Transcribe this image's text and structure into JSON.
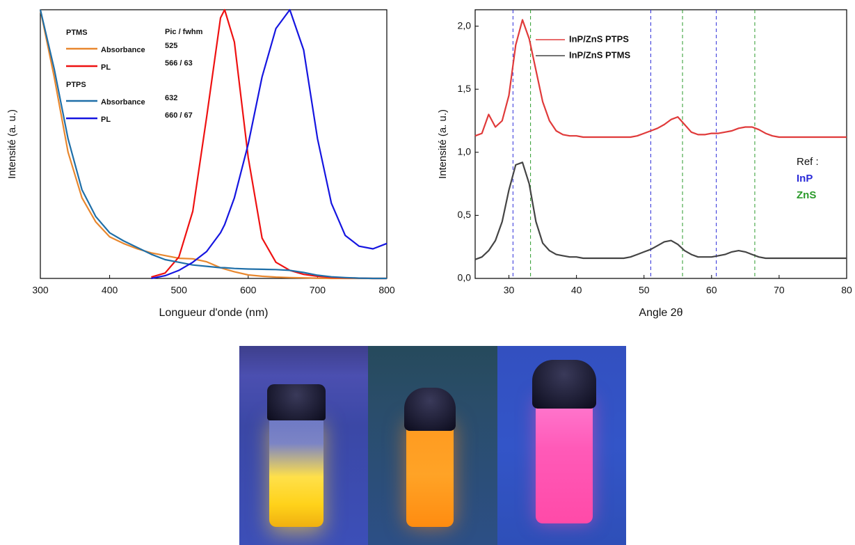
{
  "chart_data": [
    {
      "type": "line",
      "xlabel": "Longueur d'onde (nm)",
      "ylabel": "Intensité (a. u.)",
      "xlim": [
        300,
        800
      ],
      "xticks": [
        300,
        400,
        500,
        600,
        700,
        800
      ],
      "ylim": [
        0,
        1
      ],
      "legend_title": "Pic / fwhm",
      "legend_groups": [
        "PTMS",
        "PTPS"
      ],
      "x": [
        300,
        320,
        340,
        360,
        380,
        400,
        420,
        440,
        460,
        480,
        500,
        520,
        540,
        560,
        566,
        580,
        600,
        620,
        640,
        660,
        680,
        700,
        720,
        740,
        760,
        780,
        800
      ],
      "series": [
        {
          "name": "Absorbance",
          "color": "#e8872e",
          "peak_label": "525",
          "values": [
            1.0,
            0.75,
            0.47,
            0.3,
            0.21,
            0.155,
            0.13,
            0.11,
            0.095,
            0.085,
            0.075,
            0.073,
            0.062,
            0.04,
            0.035,
            0.025,
            0.013,
            0.008,
            0.005,
            0.003,
            0.002,
            0.001,
            0,
            0,
            0,
            0,
            0
          ]
        },
        {
          "name": "PL",
          "color": "#ee1111",
          "peak_label": "566 / 63",
          "values": [
            null,
            null,
            null,
            null,
            null,
            null,
            null,
            null,
            0.005,
            0.02,
            0.08,
            0.25,
            0.6,
            0.97,
            1.0,
            0.88,
            0.45,
            0.15,
            0.06,
            0.03,
            0.015,
            0.008,
            0.004,
            0.002,
            0.001,
            0,
            0
          ]
        },
        {
          "name": "Absorbance",
          "color": "#1f6fa8",
          "peak_label": "632",
          "values": [
            1.0,
            0.78,
            0.52,
            0.33,
            0.23,
            0.17,
            0.14,
            0.115,
            0.09,
            0.07,
            0.06,
            0.05,
            0.045,
            0.04,
            0.04,
            0.037,
            0.035,
            0.034,
            0.033,
            0.03,
            0.022,
            0.012,
            0.006,
            0.003,
            0.001,
            0,
            0
          ]
        },
        {
          "name": "PL",
          "color": "#1515e0",
          "peak_label": "660 / 67",
          "values": [
            null,
            null,
            null,
            null,
            null,
            null,
            null,
            null,
            0.0,
            0.01,
            0.03,
            0.06,
            0.1,
            0.17,
            0.2,
            0.3,
            0.5,
            0.75,
            0.93,
            1.0,
            0.85,
            0.52,
            0.28,
            0.16,
            0.12,
            0.11,
            0.13
          ]
        }
      ]
    },
    {
      "type": "line",
      "xlabel": "Angle 2θ",
      "ylabel": "Intensité (a. u.)",
      "xlim": [
        25,
        80
      ],
      "xticks": [
        30,
        40,
        50,
        60,
        70,
        80
      ],
      "ylim": [
        0,
        2.13
      ],
      "yticks": [
        {
          "value": 0,
          "label": "0,0"
        },
        {
          "value": 0.5,
          "label": "0,5"
        },
        {
          "value": 1,
          "label": "1,0"
        },
        {
          "value": 1.5,
          "label": "1,5"
        },
        {
          "value": 2,
          "label": "2,0"
        }
      ],
      "ref_title": "Ref :",
      "references": [
        {
          "name": "InP",
          "color": "#2b2bd9",
          "positions": [
            30.6,
            51.0,
            60.7
          ]
        },
        {
          "name": "ZnS",
          "color": "#2a9a2a",
          "positions": [
            33.2,
            55.7,
            66.4
          ]
        }
      ],
      "x": [
        25,
        26,
        27,
        28,
        29,
        30,
        31,
        32,
        33,
        34,
        35,
        36,
        37,
        38,
        39,
        40,
        41,
        42,
        43,
        44,
        45,
        46,
        47,
        48,
        49,
        50,
        51,
        52,
        53,
        54,
        55,
        56,
        57,
        58,
        59,
        60,
        61,
        62,
        63,
        64,
        65,
        66,
        67,
        68,
        69,
        70,
        71,
        72,
        73,
        74,
        75,
        76,
        77,
        78,
        79,
        80
      ],
      "series": [
        {
          "name": "InP/ZnS PTPS",
          "color": "#e03a3a",
          "values": [
            1.13,
            1.15,
            1.3,
            1.2,
            1.25,
            1.45,
            1.85,
            2.05,
            1.9,
            1.65,
            1.4,
            1.25,
            1.17,
            1.14,
            1.13,
            1.13,
            1.12,
            1.12,
            1.12,
            1.12,
            1.12,
            1.12,
            1.12,
            1.12,
            1.13,
            1.15,
            1.17,
            1.19,
            1.22,
            1.26,
            1.28,
            1.22,
            1.16,
            1.14,
            1.14,
            1.15,
            1.15,
            1.16,
            1.17,
            1.19,
            1.2,
            1.2,
            1.18,
            1.15,
            1.13,
            1.12,
            1.12,
            1.12,
            1.12,
            1.12,
            1.12,
            1.12,
            1.12,
            1.12,
            1.12,
            1.12
          ]
        },
        {
          "name": "InP/ZnS PTMS",
          "color": "#444444",
          "values": [
            0.15,
            0.17,
            0.22,
            0.3,
            0.45,
            0.7,
            0.9,
            0.92,
            0.75,
            0.45,
            0.28,
            0.22,
            0.19,
            0.18,
            0.17,
            0.17,
            0.16,
            0.16,
            0.16,
            0.16,
            0.16,
            0.16,
            0.16,
            0.17,
            0.19,
            0.21,
            0.23,
            0.26,
            0.29,
            0.3,
            0.27,
            0.22,
            0.19,
            0.17,
            0.17,
            0.17,
            0.18,
            0.19,
            0.21,
            0.22,
            0.21,
            0.19,
            0.17,
            0.16,
            0.16,
            0.16,
            0.16,
            0.16,
            0.16,
            0.16,
            0.16,
            0.16,
            0.16,
            0.16,
            0.16,
            0.16
          ]
        }
      ]
    }
  ]
}
